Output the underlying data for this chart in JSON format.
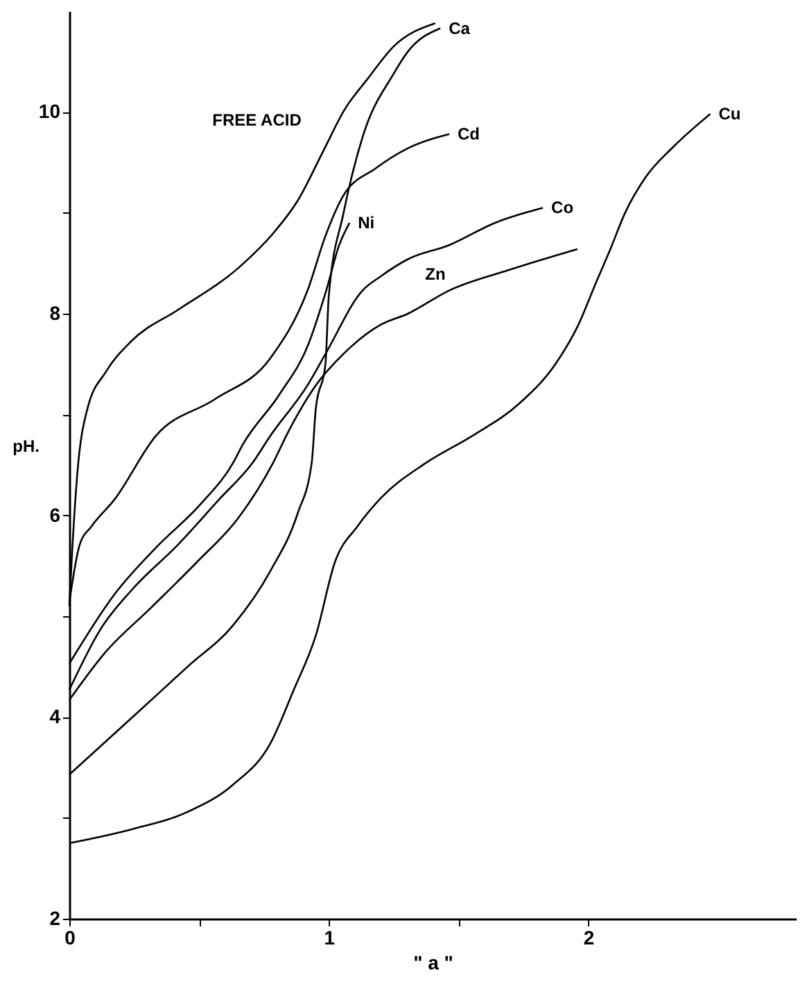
{
  "chart_data": {
    "type": "line",
    "xlabel": "\" a \"",
    "ylabel": "pH.",
    "xlim": [
      0,
      2.8
    ],
    "ylim": [
      2,
      11
    ],
    "xticks": [
      0,
      {
        "value": 0.5,
        "label": null
      },
      1,
      {
        "value": 1.5,
        "label": null
      },
      2
    ],
    "yticks": [
      2,
      {
        "value": 3,
        "label": null
      },
      4,
      {
        "value": 5,
        "label": null
      },
      6,
      {
        "value": 7,
        "label": null
      },
      8,
      {
        "value": 9,
        "label": null
      },
      10
    ],
    "grid": false,
    "legend": false,
    "marker": "none",
    "line_style": "solid",
    "series": [
      {
        "name": "FREE ACID",
        "color": "#000000",
        "x": [
          0,
          0.01,
          0.03,
          0.07,
          0.14,
          0.24,
          0.42,
          0.65,
          0.79,
          0.88,
          0.98,
          1.06,
          1.15,
          1.25,
          1.41
        ],
        "values": [
          5.1,
          5.6,
          6.39,
          7.06,
          7.42,
          7.73,
          8.04,
          8.45,
          8.81,
          9.12,
          9.62,
          10.02,
          10.33,
          10.65,
          10.88
        ]
      },
      {
        "name": "Ca",
        "color": "#000000",
        "x": [
          0,
          0.244,
          0.456,
          0.631,
          0.775,
          0.88,
          0.934,
          0.95,
          0.987,
          1.0,
          1.056,
          1.13,
          1.25,
          1.305,
          1.43
        ],
        "values": [
          3.43,
          4.0,
          4.5,
          4.91,
          5.45,
          6.02,
          6.52,
          7.06,
          7.5,
          8.18,
          8.99,
          9.75,
          10.38,
          10.6,
          10.83
        ]
      },
      {
        "name": "Cd",
        "color": "#000000",
        "x": [
          0,
          0.04,
          0.085,
          0.175,
          0.334,
          0.56,
          0.775,
          0.918,
          0.987,
          1.056,
          1.18,
          1.305,
          1.464
        ],
        "values": [
          5.14,
          5.71,
          5.89,
          6.16,
          6.79,
          7.15,
          7.56,
          8.23,
          8.77,
          9.17,
          9.44,
          9.64,
          9.78
        ]
      },
      {
        "name": "Ni",
        "color": "#000000",
        "x": [
          0,
          0.175,
          0.334,
          0.509,
          0.631,
          0.668,
          0.81,
          0.92,
          0.99,
          1.04,
          1.08
        ],
        "values": [
          4.53,
          5.22,
          5.68,
          6.12,
          6.52,
          6.7,
          7.2,
          7.69,
          8.23,
          8.68,
          8.9
        ]
      },
      {
        "name": "Co",
        "color": "#000000",
        "x": [
          0,
          0.12,
          0.244,
          0.419,
          0.578,
          0.706,
          0.775,
          0.918,
          0.987,
          1.13,
          1.2,
          1.305,
          1.464,
          1.64,
          1.825
        ],
        "values": [
          4.27,
          4.87,
          5.27,
          5.71,
          6.16,
          6.52,
          6.79,
          7.29,
          7.6,
          8.23,
          8.37,
          8.54,
          8.68,
          8.9,
          9.05
        ]
      },
      {
        "name": "Zn",
        "color": "#000000",
        "x": [
          0,
          0.138,
          0.313,
          0.493,
          0.653,
          0.785,
          0.844,
          0.95,
          1.056,
          1.2,
          1.305,
          1.464,
          1.69,
          1.958
        ],
        "values": [
          4.17,
          4.64,
          5.08,
          5.54,
          5.98,
          6.52,
          6.83,
          7.29,
          7.6,
          7.89,
          8.0,
          8.23,
          8.43,
          8.64
        ]
      },
      {
        "name": "Cu",
        "color": "#000000",
        "x": [
          0,
          0.244,
          0.456,
          0.631,
          0.775,
          0.865,
          0.95,
          1.024,
          1.11,
          1.2,
          1.374,
          1.554,
          1.73,
          1.873,
          1.958,
          2.03,
          2.085,
          2.14,
          2.22,
          2.33,
          2.47
        ],
        "values": [
          2.75,
          2.89,
          3.06,
          3.33,
          3.74,
          4.27,
          4.81,
          5.54,
          5.89,
          6.17,
          6.52,
          6.79,
          7.1,
          7.5,
          7.87,
          8.31,
          8.64,
          8.99,
          9.35,
          9.66,
          9.98
        ]
      }
    ]
  }
}
